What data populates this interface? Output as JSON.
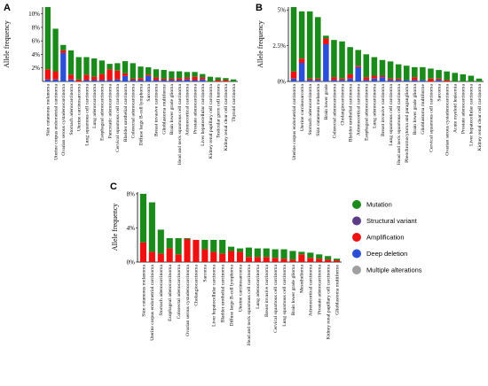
{
  "colors": {
    "mutation": "#1a8a1a",
    "structural": "#5b3a86",
    "amplification": "#ee1111",
    "deep_deletion": "#2b4fd6",
    "multiple": "#a0a0a0"
  },
  "legend": {
    "items": [
      {
        "key": "mutation",
        "label": "Mutation"
      },
      {
        "key": "structural",
        "label": "Structural variant"
      },
      {
        "key": "amplification",
        "label": "Amplification"
      },
      {
        "key": "deep_deletion",
        "label": "Deep deletion"
      },
      {
        "key": "multiple",
        "label": "Multiple alterations"
      }
    ]
  },
  "chart_data": [
    {
      "panel": "A",
      "type": "bar",
      "stacked": true,
      "ylabel": "Allele frequency",
      "ylim": [
        0,
        11
      ],
      "yticks": [
        2,
        4,
        6,
        8,
        10
      ],
      "ytick_labels": [
        "2%",
        "4%",
        "6%",
        "8%",
        "10%"
      ],
      "categories": [
        "Skin cutaneous melanoma",
        "Uterine corpus endometrial carcinoma",
        "Ovarian serous cystadenocarcinoma",
        "Stomach adenocarcinoma",
        "Uterine carcinosarcoma",
        "Lung squamous cell carcinoma",
        "Lung adenocarcinoma",
        "Esophageal adenocarcinoma",
        "Pancreatic adenocarcinoma",
        "Cervical squamous cell carcinoma",
        "Bladder urothelial carcinoma",
        "Colorectal adenocarcinoma",
        "Diffuse large B-cell lymphoma",
        "Sarcoma",
        "Breast invasive carcinoma",
        "Glioblastoma multiforme",
        "Brain lower grade glioma",
        "Head and neck squamous cell carcinoma",
        "Adrenocortical carcinoma",
        "Prostate adenocarcinoma",
        "Liver hepatocellular carcinoma",
        "Kidney renal papillary cell carcinoma",
        "Testicular germ cell tumors",
        "Kidney renal clear cell carcinoma",
        "Thyroid carcinoma"
      ],
      "series": [
        {
          "key": "deep_deletion",
          "values": [
            0.3,
            0.3,
            4.2,
            0.3,
            0,
            0.2,
            0.2,
            0.2,
            0.2,
            0.3,
            0.8,
            0.2,
            0.2,
            0.8,
            0.2,
            0.2,
            0.2,
            0.2,
            0.3,
            0.2,
            0.3,
            0,
            0,
            0,
            0
          ]
        },
        {
          "key": "amplification",
          "values": [
            1.5,
            1.2,
            0.4,
            0.7,
            0.3,
            0.8,
            0.5,
            0.9,
            1.6,
            1.3,
            0.4,
            0.2,
            0.3,
            0.2,
            0.4,
            0.2,
            0.2,
            0.3,
            0.3,
            0.5,
            0.3,
            0,
            0.2,
            0.2,
            0
          ]
        },
        {
          "key": "mutation",
          "values": [
            9.2,
            6.3,
            0.8,
            3.6,
            3.3,
            2.6,
            2.7,
            2.0,
            0.8,
            1.1,
            1.8,
            2.3,
            1.7,
            1.1,
            1.2,
            1.3,
            1.1,
            1.0,
            0.8,
            0.7,
            0.5,
            0.7,
            0.4,
            0.3,
            0.3
          ]
        }
      ]
    },
    {
      "panel": "B",
      "type": "bar",
      "stacked": true,
      "ylabel": "Allele frequency",
      "ylim": [
        0,
        5.2
      ],
      "yticks": [
        0,
        2.5,
        5
      ],
      "ytick_labels": [
        "0%",
        "2.5%",
        "5%"
      ],
      "categories": [
        "Uterine corpus endometrial carcinoma",
        "Uterine carcinosarcoma",
        "Stomach adenocarcinoma",
        "Skin cutaneous melanoma",
        "Brain lower grade",
        "Colorectal adenocarcinoma",
        "Cholangiocarcinoma",
        "Bladder urothelial carcinoma",
        "Adrenocortical carcinoma",
        "Esophageal adenocarcinoma",
        "Lung adenocarcinoma",
        "Breast invasive carcinoma",
        "Lung squamous cell carcinoma",
        "Head and neck squamous cell carcinoma",
        "Pheochromocytoma and paraganglioma",
        "Brain lower grade glioma",
        "Glioblastoma multiforme",
        "Cervical squamous cell carcinoma",
        "Sarcoma",
        "Ovarian serous cystadenocarcinoma",
        "Acute myeloid leukemia",
        "Prostate adenocarcinoma",
        "Liver hepatocellular carcinoma",
        "Kidney renal clear cell carcinoma"
      ],
      "series": [
        {
          "key": "deep_deletion",
          "values": [
            0.2,
            1.3,
            0.1,
            0.1,
            2.6,
            0.1,
            0.1,
            0.2,
            1.0,
            0.1,
            0.2,
            0.3,
            0.1,
            0.1,
            0.1,
            0.1,
            0.1,
            0,
            0.1,
            0,
            0,
            0,
            0,
            0
          ]
        },
        {
          "key": "amplification",
          "values": [
            0.5,
            0.3,
            0.1,
            0.1,
            0.4,
            0.2,
            0.1,
            0.3,
            0.1,
            0.2,
            0.2,
            0.1,
            0.1,
            0.1,
            0,
            0.2,
            0,
            0.2,
            0.1,
            0.1,
            0,
            0,
            0,
            0
          ]
        },
        {
          "key": "mutation",
          "values": [
            4.5,
            3.3,
            4.7,
            4.3,
            0.2,
            2.6,
            2.6,
            1.9,
            1.1,
            1.6,
            1.3,
            1.1,
            1.2,
            1.0,
            1.0,
            0.7,
            0.9,
            0.7,
            0.6,
            0.6,
            0.6,
            0.5,
            0.4,
            0.2
          ]
        }
      ]
    },
    {
      "panel": "C",
      "type": "bar",
      "stacked": true,
      "ylabel": "Allele frequency",
      "ylim": [
        0,
        8.2
      ],
      "yticks": [
        0,
        4,
        8
      ],
      "ytick_labels": [
        "0%",
        "4%",
        "8%"
      ],
      "categories": [
        "Skin cutaneous melanoma",
        "Uterine corpus endometrial carcinoma",
        "Stomach adenocarcinoma",
        "Esophageal adenocarcinoma",
        "Colorectal adenocarcinoma",
        "Ovarian serous cystadenocarcinoma",
        "Cholangiocarcinoma",
        "Sarcoma",
        "Liver hepatocellular carcinoma",
        "Bladder urothelial carcinoma",
        "Diffuse large B-cell lymphoma",
        "Uterine carcinosarcoma",
        "Head and neck squamous cell carcinoma",
        "Lung adenocarcinoma",
        "Breast invasive carcinoma",
        "Cervical squamous cell carcinoma",
        "Lung squamous cell carcinoma",
        "Brain lower grade glioma",
        "Mesothelioma",
        "Adrenocortical carcinoma",
        "Prostate adenocarcinoma",
        "Kidney renal papillary cell carcinoma",
        "Glioblastoma multiforme"
      ],
      "series": [
        {
          "key": "amplification",
          "values": [
            2.3,
            1.2,
            1.0,
            1.6,
            0.9,
            2.7,
            2.6,
            1.5,
            1.2,
            1.0,
            1.3,
            1.2,
            0.6,
            0.6,
            0.6,
            0.5,
            0.4,
            0.3,
            0.9,
            0.5,
            0.4,
            0.3,
            0.2
          ]
        },
        {
          "key": "mutation",
          "values": [
            5.7,
            5.8,
            2.8,
            1.2,
            1.9,
            0.1,
            0,
            1.1,
            1.4,
            1.6,
            0.5,
            0.4,
            1.1,
            1.0,
            1.0,
            1.0,
            1.1,
            1.0,
            0.3,
            0.6,
            0.5,
            0.4,
            0.2
          ]
        }
      ]
    }
  ]
}
